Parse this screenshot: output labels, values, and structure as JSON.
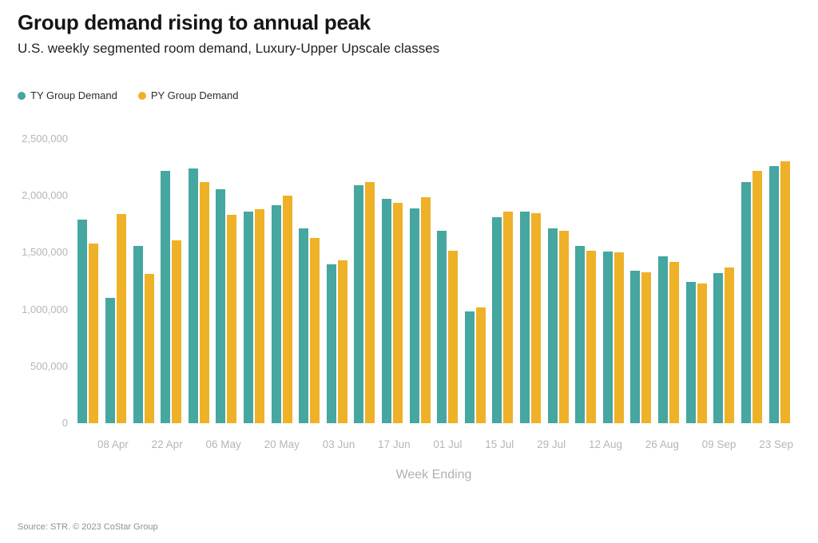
{
  "chart_data": {
    "type": "bar",
    "title": "Group demand rising to annual peak",
    "subtitle": "U.S. weekly segmented room demand, Luxury-Upper Upscale classes",
    "xlabel": "Week Ending",
    "ylabel": "",
    "ylim": [
      0,
      2500000
    ],
    "grid": false,
    "legend_position": "top-left",
    "y_ticks": [
      0,
      500000,
      1000000,
      1500000,
      2000000,
      2500000
    ],
    "y_tick_labels": [
      "0",
      "500,000",
      "1,000,000",
      "1,500,000",
      "2,000,000",
      "2,500,000"
    ],
    "categories": [
      "",
      "08 Apr",
      "",
      "22 Apr",
      "",
      "06 May",
      "",
      "20 May",
      "",
      "03 Jun",
      "",
      "17 Jun",
      "",
      "01 Jul",
      "",
      "15 Jul",
      "",
      "29 Jul",
      "",
      "12 Aug",
      "",
      "26 Aug",
      "",
      "09 Sep",
      "",
      "23 Sep"
    ],
    "series": [
      {
        "name": "TY Group Demand",
        "color": "#46a6a0",
        "values": [
          1790000,
          1100000,
          1560000,
          2220000,
          2240000,
          2060000,
          1860000,
          1920000,
          1710000,
          1400000,
          2090000,
          1970000,
          1890000,
          1690000,
          980000,
          1810000,
          1860000,
          1710000,
          1560000,
          1510000,
          1340000,
          1470000,
          1240000,
          1320000,
          2120000,
          2260000
        ]
      },
      {
        "name": "PY Group Demand",
        "color": "#eeb128",
        "values": [
          1580000,
          1840000,
          1310000,
          1610000,
          2120000,
          1830000,
          1880000,
          2000000,
          1630000,
          1430000,
          2120000,
          1940000,
          1990000,
          1520000,
          1020000,
          1860000,
          1850000,
          1690000,
          1520000,
          1500000,
          1330000,
          1420000,
          1230000,
          1370000,
          2220000,
          2300000
        ]
      }
    ]
  },
  "footer": {
    "source": "Source: STR. © 2023 CoStar Group"
  }
}
